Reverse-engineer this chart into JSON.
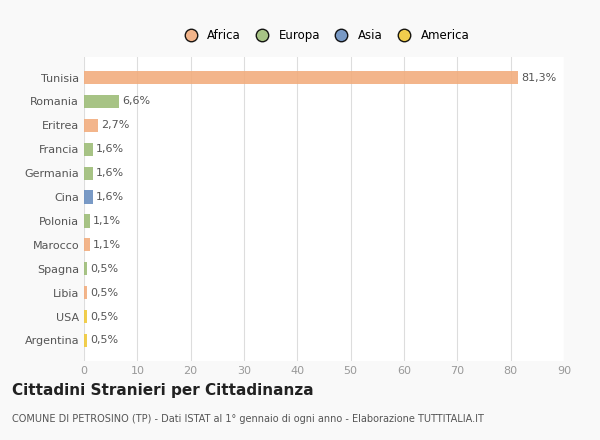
{
  "categories": [
    "Tunisia",
    "Romania",
    "Eritrea",
    "Francia",
    "Germania",
    "Cina",
    "Polonia",
    "Marocco",
    "Spagna",
    "Libia",
    "USA",
    "Argentina"
  ],
  "values": [
    81.3,
    6.6,
    2.7,
    1.6,
    1.6,
    1.6,
    1.1,
    1.1,
    0.5,
    0.5,
    0.5,
    0.5
  ],
  "labels": [
    "81,3%",
    "6,6%",
    "2,7%",
    "1,6%",
    "1,6%",
    "1,6%",
    "1,1%",
    "1,1%",
    "0,5%",
    "0,5%",
    "0,5%",
    "0,5%"
  ],
  "colors": [
    "#F2AD7E",
    "#9EBD78",
    "#F2AD7E",
    "#9EBD78",
    "#9EBD78",
    "#6A8FC0",
    "#9EBD78",
    "#F2AD7E",
    "#9EBD78",
    "#F2AD7E",
    "#F0C93A",
    "#F0C93A"
  ],
  "legend_labels": [
    "Africa",
    "Europa",
    "Asia",
    "America"
  ],
  "legend_colors": [
    "#F2AD7E",
    "#9EBD78",
    "#6A8FC0",
    "#F0C93A"
  ],
  "xlim": [
    0,
    90
  ],
  "xticks": [
    0,
    10,
    20,
    30,
    40,
    50,
    60,
    70,
    80,
    90
  ],
  "title1": "Cittadini Stranieri per Cittadinanza",
  "title2": "COMUNE DI PETROSINO (TP) - Dati ISTAT al 1° gennaio di ogni anno - Elaborazione TUTTITALIA.IT",
  "bg_color": "#F9F9F9",
  "plot_bg_color": "#FFFFFF",
  "bar_height": 0.55,
  "label_fontsize": 8,
  "tick_fontsize": 8,
  "title1_fontsize": 11,
  "title2_fontsize": 7
}
